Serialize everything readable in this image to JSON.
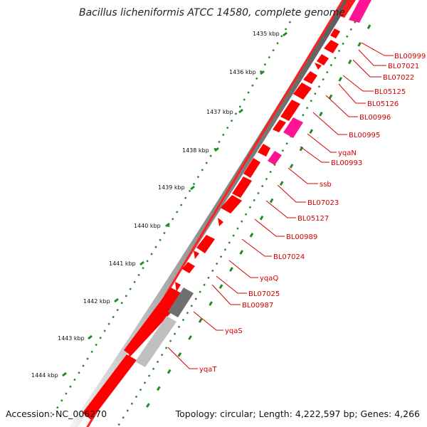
{
  "title": "Bacillus licheniformis ATCC 14580, complete genome",
  "footer": {
    "accession": "Accession: NC_006270",
    "topology": "Topology: circular; Length: 4,222,597 bp; Genes: 4,266"
  },
  "colors": {
    "gene_forward": "#ff0000",
    "gene_pseudo": "#ff1493",
    "gene_gray": "#808080",
    "label": "#d40000",
    "gc_dots": "#228b22"
  },
  "scale_ticks": [
    "1435 kbp",
    "1436 kbp",
    "1437 kbp",
    "1438 kbp",
    "1439 kbp",
    "1440 kbp",
    "1441 kbp",
    "1442 kbp",
    "1443 kbp",
    "1444 kbp"
  ],
  "gene_labels": [
    "BL00999",
    "BL07021",
    "BL07022",
    "BL05125",
    "BL05126",
    "BL00996",
    "BL00995",
    "yqaN",
    "BL00993",
    "ssb",
    "BL07023",
    "BL05127",
    "BL00989",
    "BL07024",
    "yqaQ",
    "BL07025",
    "BL00987",
    "yqaS",
    "yqaT"
  ]
}
